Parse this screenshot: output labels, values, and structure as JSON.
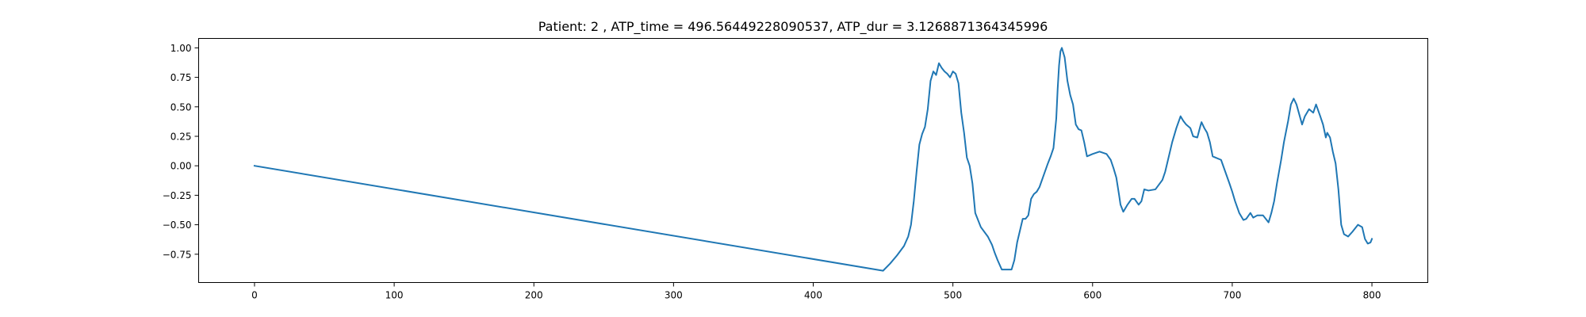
{
  "chart_data": {
    "type": "line",
    "title": "Patient: 2 , ATP_time = 496.56449228090537, ATP_dur = 3.1268871364345996",
    "xlabel": "",
    "ylabel": "",
    "xlim": [
      -40,
      840
    ],
    "ylim": [
      -0.99,
      1.08
    ],
    "xticks": [
      0,
      100,
      200,
      300,
      400,
      500,
      600,
      700,
      800
    ],
    "xtick_labels": [
      "0",
      "100",
      "200",
      "300",
      "400",
      "500",
      "600",
      "700",
      "800"
    ],
    "yticks": [
      1.0,
      0.75,
      0.5,
      0.25,
      0.0,
      -0.25,
      -0.5,
      -0.75
    ],
    "ytick_labels": [
      "1.00",
      "0.75",
      "0.50",
      "0.25",
      "0.00",
      "−0.25",
      "−0.50",
      "−0.75"
    ],
    "grid": false,
    "series": [
      {
        "color": "#1f77b4",
        "x": [
          0,
          450,
          455,
          460,
          465,
          468,
          470,
          472,
          474,
          476,
          478,
          480,
          482,
          484,
          486,
          488,
          490,
          492,
          494,
          496,
          498,
          500,
          502,
          504,
          506,
          508,
          510,
          512,
          514,
          516,
          520,
          525,
          528,
          530,
          532,
          535,
          538,
          540,
          542,
          544,
          546,
          548,
          550,
          552,
          554,
          556,
          558,
          560,
          562,
          565,
          568,
          570,
          572,
          574,
          575,
          576,
          577,
          578,
          580,
          582,
          584,
          586,
          588,
          590,
          592,
          594,
          596,
          600,
          605,
          610,
          613,
          615,
          617,
          619,
          620,
          622,
          625,
          628,
          630,
          633,
          635,
          637,
          640,
          645,
          650,
          652,
          655,
          657,
          660,
          663,
          665,
          667,
          670,
          672,
          675,
          677,
          678,
          680,
          682,
          684,
          686,
          688,
          692,
          695,
          698,
          700,
          702,
          705,
          708,
          710,
          713,
          715,
          718,
          720,
          722,
          724,
          726,
          728,
          730,
          732,
          735,
          737,
          740,
          742,
          744,
          746,
          750,
          752,
          755,
          758,
          760,
          763,
          765,
          767,
          768,
          770,
          772,
          774,
          776,
          778,
          780,
          783,
          786,
          790,
          793,
          795,
          797,
          799,
          800
        ],
        "y": [
          0.0,
          -0.89,
          -0.83,
          -0.76,
          -0.68,
          -0.6,
          -0.5,
          -0.3,
          -0.05,
          0.18,
          0.27,
          0.33,
          0.48,
          0.72,
          0.8,
          0.77,
          0.87,
          0.83,
          0.8,
          0.78,
          0.75,
          0.8,
          0.78,
          0.7,
          0.45,
          0.28,
          0.07,
          0.0,
          -0.15,
          -0.4,
          -0.52,
          -0.6,
          -0.67,
          -0.74,
          -0.8,
          -0.88,
          -0.88,
          -0.88,
          -0.88,
          -0.8,
          -0.65,
          -0.55,
          -0.45,
          -0.45,
          -0.42,
          -0.28,
          -0.24,
          -0.22,
          -0.18,
          -0.08,
          0.02,
          0.08,
          0.15,
          0.4,
          0.65,
          0.85,
          0.97,
          1.0,
          0.92,
          0.72,
          0.6,
          0.52,
          0.35,
          0.31,
          0.3,
          0.2,
          0.08,
          0.1,
          0.12,
          0.1,
          0.05,
          -0.02,
          -0.1,
          -0.25,
          -0.33,
          -0.39,
          -0.33,
          -0.28,
          -0.28,
          -0.33,
          -0.3,
          -0.2,
          -0.21,
          -0.2,
          -0.12,
          -0.05,
          0.1,
          0.2,
          0.32,
          0.42,
          0.38,
          0.35,
          0.32,
          0.25,
          0.24,
          0.33,
          0.37,
          0.32,
          0.28,
          0.2,
          0.08,
          0.07,
          0.05,
          -0.05,
          -0.15,
          -0.22,
          -0.3,
          -0.4,
          -0.46,
          -0.45,
          -0.4,
          -0.44,
          -0.42,
          -0.42,
          -0.42,
          -0.45,
          -0.48,
          -0.4,
          -0.3,
          -0.15,
          0.05,
          0.2,
          0.38,
          0.52,
          0.57,
          0.52,
          0.35,
          0.42,
          0.48,
          0.45,
          0.52,
          0.42,
          0.35,
          0.24,
          0.28,
          0.24,
          0.12,
          0.02,
          -0.2,
          -0.5,
          -0.58,
          -0.6,
          -0.56,
          -0.5,
          -0.52,
          -0.62,
          -0.66,
          -0.65,
          -0.62
        ]
      }
    ]
  }
}
